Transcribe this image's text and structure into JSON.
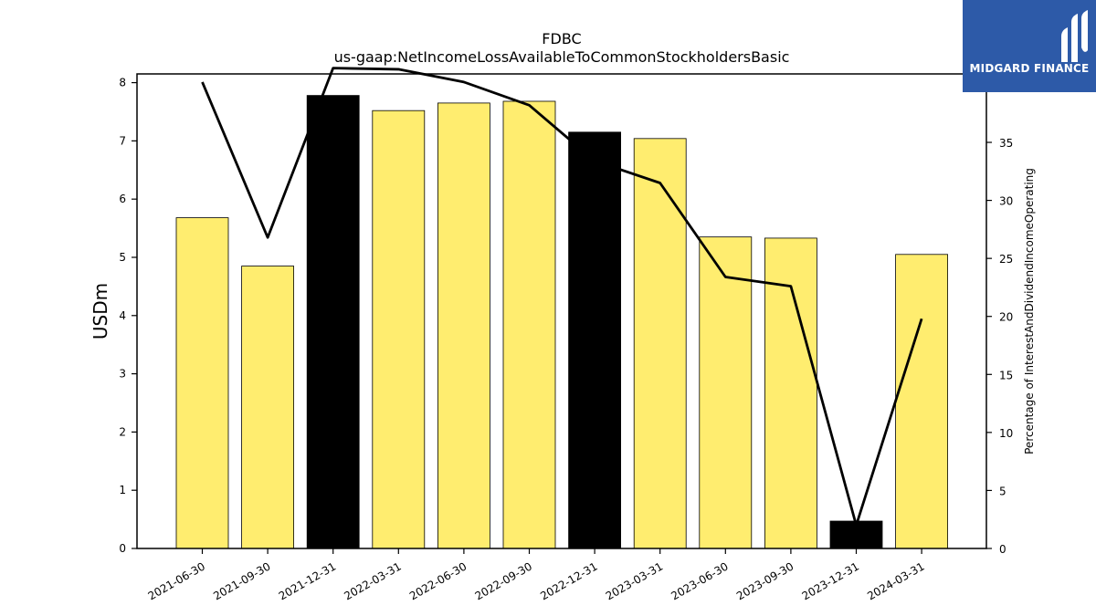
{
  "chart_data": {
    "type": "bar",
    "title": "FDBC",
    "subtitle": "us-gaap:NetIncomeLossAvailableToCommonStockholdersBasic",
    "ylabel": "USDm",
    "y2label": "Percentage of InterestAndDividendIncomeOperating",
    "ylim": [
      0,
      8.15
    ],
    "y2lim": [
      0,
      40.9
    ],
    "yticks": [
      0,
      1,
      2,
      3,
      4,
      5,
      6,
      7,
      8
    ],
    "y2ticks": [
      0,
      5,
      10,
      15,
      20,
      25,
      30,
      35,
      40
    ],
    "categories": [
      "2021-06-30",
      "2021-09-30",
      "2021-12-31",
      "2022-03-31",
      "2022-06-30",
      "2022-09-30",
      "2022-12-31",
      "2023-03-31",
      "2023-06-30",
      "2023-09-30",
      "2023-12-31",
      "2024-03-31"
    ],
    "series": [
      {
        "type": "bar",
        "values": [
          5.68,
          4.85,
          7.78,
          7.52,
          7.65,
          7.68,
          7.15,
          7.04,
          5.35,
          5.33,
          0.47,
          5.05
        ],
        "colors": [
          "#ffed6f",
          "#ffed6f",
          "#000000",
          "#ffed6f",
          "#ffed6f",
          "#ffed6f",
          "#000000",
          "#ffed6f",
          "#ffed6f",
          "#ffed6f",
          "#000000",
          "#ffed6f"
        ]
      },
      {
        "type": "line",
        "axis": "right",
        "values": [
          40.2,
          26.8,
          41.4,
          41.3,
          40.2,
          38.2,
          33.4,
          31.5,
          23.4,
          22.6,
          2.0,
          19.8
        ],
        "color": "#000000"
      }
    ],
    "grid": false
  },
  "logo": {
    "text": "MIDGARD FINANCE",
    "color": "#2d5aa8"
  }
}
